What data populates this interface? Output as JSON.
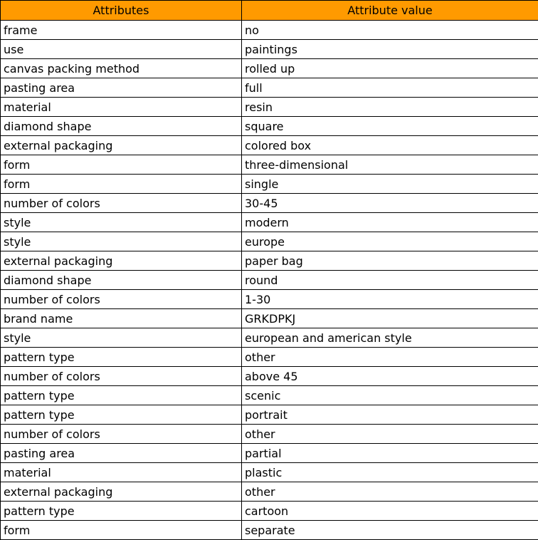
{
  "header": {
    "attributes": "Attributes",
    "value": "Attribute value",
    "color": "#FF9A00"
  },
  "rows": [
    [
      "frame",
      "no"
    ],
    [
      "use",
      "paintings"
    ],
    [
      "canvas packing method",
      "rolled up"
    ],
    [
      "pasting area",
      "full"
    ],
    [
      "material",
      "resin"
    ],
    [
      "diamond shape",
      "square"
    ],
    [
      "external packaging",
      "colored box"
    ],
    [
      "form",
      "three-dimensional"
    ],
    [
      "form",
      "single"
    ],
    [
      "number of colors",
      "30-45"
    ],
    [
      "style",
      "modern"
    ],
    [
      "style",
      "europe"
    ],
    [
      "external packaging",
      "paper bag"
    ],
    [
      "diamond shape",
      "round"
    ],
    [
      "number of colors",
      "1-30"
    ],
    [
      "brand name",
      "GRKDPKJ"
    ],
    [
      "style",
      "european and american style"
    ],
    [
      "pattern type",
      "other"
    ],
    [
      "number of colors",
      "above 45"
    ],
    [
      "pattern type",
      "scenic"
    ],
    [
      "pattern type",
      "portrait"
    ],
    [
      "number of colors",
      "other"
    ],
    [
      "pasting area",
      "partial"
    ],
    [
      "material",
      "plastic"
    ],
    [
      "external packaging",
      "other"
    ],
    [
      "pattern type",
      "cartoon"
    ],
    [
      "form",
      "separate"
    ]
  ]
}
